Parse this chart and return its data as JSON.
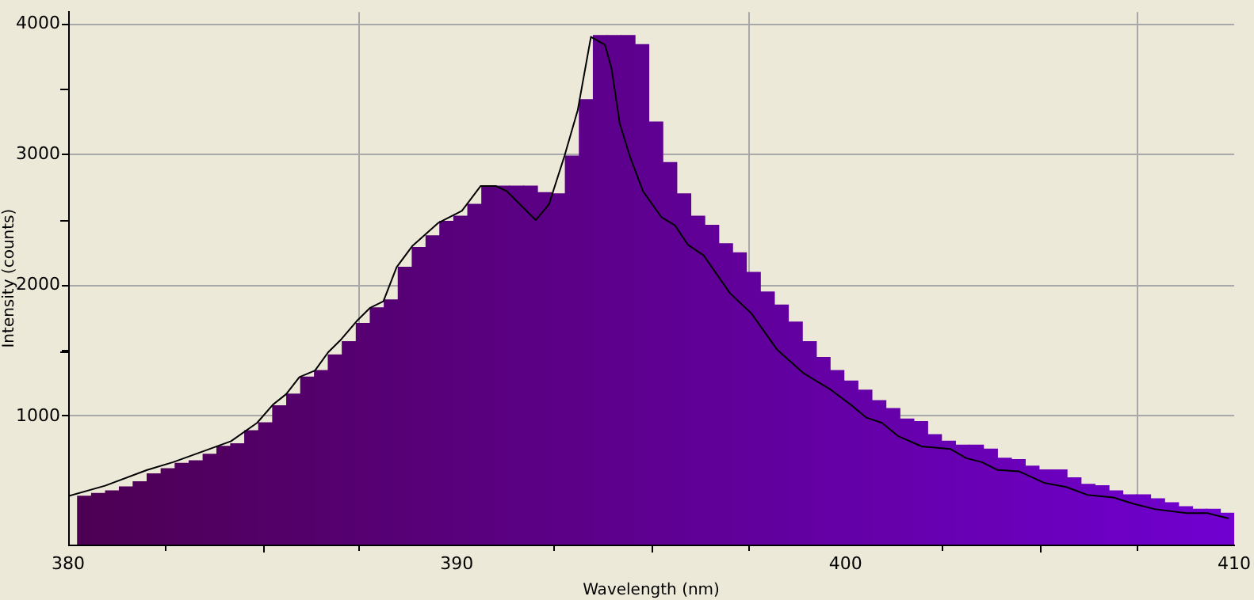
{
  "chart_data": {
    "type": "histogram",
    "xlabel": "Wavelength (nm)",
    "ylabel": "Intensity (counts)",
    "bins": [
      380.24,
      380.6,
      380.96,
      381.32,
      381.67,
      382.03,
      382.39,
      382.75,
      383.11,
      383.47,
      383.83,
      384.18,
      384.54,
      384.9,
      385.26,
      385.62,
      385.98,
      386.34,
      386.69,
      387.05,
      387.41,
      387.77,
      388.13,
      388.49,
      388.85,
      389.21,
      389.56,
      389.92,
      390.28,
      390.64,
      391.0,
      391.36,
      391.72,
      392.07,
      392.43,
      392.79,
      393.15,
      393.51,
      393.87,
      394.23,
      394.58,
      394.94,
      395.3,
      395.66,
      396.02,
      396.38,
      396.74,
      397.09,
      397.45,
      397.81,
      398.17,
      398.53,
      398.89,
      399.25,
      399.6,
      399.96,
      400.32,
      400.68,
      401.04,
      401.4,
      401.76,
      402.11,
      402.47,
      402.83,
      403.19,
      403.55,
      403.91,
      404.27,
      404.62,
      404.98,
      405.34,
      405.7,
      406.06,
      406.42,
      406.78,
      407.13,
      407.49,
      407.85,
      408.21,
      408.57,
      408.93,
      409.29,
      409.64,
      410.0
    ],
    "values": [
      390,
      410,
      430,
      460,
      500,
      560,
      600,
      640,
      660,
      710,
      770,
      790,
      890,
      950,
      1080,
      1170,
      1300,
      1350,
      1470,
      1570,
      1710,
      1830,
      1890,
      2140,
      2290,
      2380,
      2490,
      2530,
      2620,
      2760,
      2760,
      2760,
      2760,
      2710,
      2700,
      2990,
      3420,
      3910,
      3910,
      3910,
      3840,
      3250,
      2940,
      2700,
      2530,
      2460,
      2320,
      2250,
      2100,
      1950,
      1850,
      1720,
      1570,
      1450,
      1350,
      1270,
      1200,
      1120,
      1060,
      980,
      960,
      860,
      810,
      780,
      780,
      750,
      680,
      670,
      620,
      590,
      590,
      530,
      480,
      470,
      430,
      400,
      400,
      370,
      340,
      310,
      290,
      290,
      260
    ],
    "colors": [
      "#4d0053",
      "#4d0055",
      "#4e0056",
      "#4e0058",
      "#4f0059",
      "#4f005b",
      "#50005c",
      "#50005e",
      "#50005f",
      "#510061",
      "#510062",
      "#520064",
      "#520065",
      "#530067",
      "#530068",
      "#53006a",
      "#54006b",
      "#54006d",
      "#55006e",
      "#550070",
      "#560071",
      "#560073",
      "#560075",
      "#570076",
      "#570078",
      "#580079",
      "#58007b",
      "#59007c",
      "#59007e",
      "#59007f",
      "#5a0081",
      "#5a0082",
      "#5b0084",
      "#5b0085",
      "#5c0087",
      "#5c0088",
      "#5c008a",
      "#5d008b",
      "#5d008d",
      "#5e008e",
      "#5e0090",
      "#5f0092",
      "#5f0093",
      "#5f0095",
      "#600096",
      "#600098",
      "#610099",
      "#61009b",
      "#61009c",
      "#62009e",
      "#62009f",
      "#6300a1",
      "#6300a2",
      "#6400a4",
      "#6400a5",
      "#6400a7",
      "#6500a8",
      "#6500aa",
      "#6600ab",
      "#6600ad",
      "#6700ae",
      "#6700b0",
      "#6700b2",
      "#6800b3",
      "#6800b5",
      "#6900b6",
      "#6900b8",
      "#6a00b9",
      "#6a00bb",
      "#6a00bc",
      "#6b00be",
      "#6b00bf",
      "#6c00c1",
      "#6c00c2",
      "#6d00c4",
      "#6d00c5",
      "#6d00c7",
      "#6e00c8",
      "#6e00ca",
      "#6f00cb",
      "#6f00cd",
      "#7000ce",
      "#7000d0"
    ],
    "series": [
      {
        "type": "line",
        "color": "#000000",
        "x": [
          380,
          380.95,
          382.03,
          382.7,
          384.19,
          384.86,
          385.27,
          385.61,
          385.95,
          386.35,
          386.69,
          387.03,
          387.43,
          387.77,
          388.11,
          388.45,
          388.85,
          389.53,
          390.13,
          390.61,
          391.01,
          391.29,
          392.03,
          392.37,
          392.77,
          393.11,
          393.45,
          393.81,
          393.98,
          394.19,
          394.46,
          394.79,
          395.27,
          395.61,
          395.95,
          396.35,
          397.03,
          397.57,
          398.24,
          398.92,
          399.59,
          400.13,
          400.54,
          400.94,
          401.35,
          401.96,
          402.7,
          403.11,
          403.51,
          403.92,
          404.46,
          405.13,
          405.68,
          406.22,
          406.89,
          407.43,
          407.97,
          408.78,
          409.32,
          409.86
        ],
        "values": [
          390,
          470,
          590,
          650,
          810,
          950,
          1090,
          1170,
          1300,
          1350,
          1490,
          1590,
          1730,
          1830,
          1880,
          2140,
          2300,
          2480,
          2570,
          2760,
          2760,
          2720,
          2500,
          2620,
          2990,
          3340,
          3900,
          3840,
          3660,
          3240,
          2980,
          2720,
          2520,
          2460,
          2310,
          2230,
          1940,
          1790,
          1510,
          1330,
          1210,
          1090,
          990,
          950,
          850,
          770,
          750,
          680,
          650,
          590,
          580,
          490,
          460,
          400,
          380,
          330,
          290,
          260,
          260,
          220
        ]
      }
    ],
    "xlim": [
      380,
      410
    ],
    "xticks": [
      380,
      {
        "value": 385,
        "label": null
      },
      390,
      {
        "value": 395,
        "label": null
      },
      400,
      {
        "value": 405,
        "label": null
      },
      410
    ],
    "ylim": [
      20,
      4090
    ],
    "yticks": [
      1000,
      {
        "value": 1500,
        "label": null
      },
      2000,
      {
        "value": 2500,
        "label": null
      },
      3000,
      {
        "value": 3500,
        "label": null
      },
      4000
    ],
    "grid": true
  }
}
